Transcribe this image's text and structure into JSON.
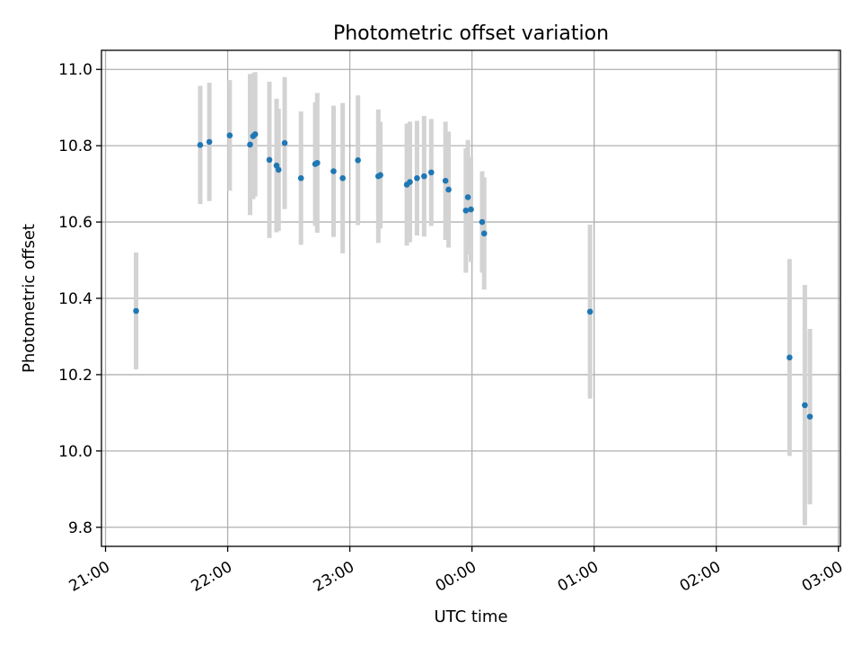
{
  "chart_data": {
    "type": "scatter",
    "title": "Photometric offset variation",
    "xlabel": "UTC time",
    "ylabel": "Photometric offset",
    "grid": true,
    "x_unit": "minutes after 21:00 UTC",
    "xlim": [
      -2,
      361
    ],
    "ylim": [
      9.75,
      11.05
    ],
    "x_ticks": [
      {
        "value": 0,
        "label": "21:00"
      },
      {
        "value": 60,
        "label": "22:00"
      },
      {
        "value": 120,
        "label": "23:00"
      },
      {
        "value": 180,
        "label": "00:00"
      },
      {
        "value": 240,
        "label": "01:00"
      },
      {
        "value": 300,
        "label": "02:00"
      },
      {
        "value": 360,
        "label": "03:00"
      }
    ],
    "y_ticks": [
      {
        "value": 9.8,
        "label": "9.8"
      },
      {
        "value": 10.0,
        "label": "10.0"
      },
      {
        "value": 10.2,
        "label": "10.2"
      },
      {
        "value": 10.4,
        "label": "10.4"
      },
      {
        "value": 10.6,
        "label": "10.6"
      },
      {
        "value": 10.8,
        "label": "10.8"
      },
      {
        "value": 11.0,
        "label": "11.0"
      }
    ],
    "colors": {
      "point": "#1f77b4",
      "errorbar": "#d3d3d3"
    },
    "points": [
      {
        "x": 15,
        "y": 10.367,
        "err": 0.153
      },
      {
        "x": 46.5,
        "y": 10.802,
        "err": 0.155
      },
      {
        "x": 51,
        "y": 10.81,
        "err": 0.155
      },
      {
        "x": 61,
        "y": 10.827,
        "err": 0.145
      },
      {
        "x": 71,
        "y": 10.803,
        "err": 0.185
      },
      {
        "x": 72.5,
        "y": 10.825,
        "err": 0.165
      },
      {
        "x": 73.5,
        "y": 10.83,
        "err": 0.163
      },
      {
        "x": 80.5,
        "y": 10.763,
        "err": 0.205
      },
      {
        "x": 84,
        "y": 10.748,
        "err": 0.175
      },
      {
        "x": 85,
        "y": 10.737,
        "err": 0.16
      },
      {
        "x": 88,
        "y": 10.807,
        "err": 0.173
      },
      {
        "x": 96,
        "y": 10.715,
        "err": 0.175
      },
      {
        "x": 103,
        "y": 10.752,
        "err": 0.162
      },
      {
        "x": 104,
        "y": 10.755,
        "err": 0.183
      },
      {
        "x": 112,
        "y": 10.733,
        "err": 0.172
      },
      {
        "x": 116.5,
        "y": 10.715,
        "err": 0.197
      },
      {
        "x": 124,
        "y": 10.762,
        "err": 0.17
      },
      {
        "x": 134,
        "y": 10.72,
        "err": 0.175
      },
      {
        "x": 135,
        "y": 10.723,
        "err": 0.14
      },
      {
        "x": 148,
        "y": 10.698,
        "err": 0.16
      },
      {
        "x": 149.5,
        "y": 10.705,
        "err": 0.158
      },
      {
        "x": 153,
        "y": 10.715,
        "err": 0.15
      },
      {
        "x": 156.5,
        "y": 10.72,
        "err": 0.158
      },
      {
        "x": 160,
        "y": 10.73,
        "err": 0.14
      },
      {
        "x": 167,
        "y": 10.708,
        "err": 0.155
      },
      {
        "x": 168.5,
        "y": 10.685,
        "err": 0.152
      },
      {
        "x": 177,
        "y": 10.63,
        "err": 0.163
      },
      {
        "x": 178,
        "y": 10.665,
        "err": 0.15
      },
      {
        "x": 179.5,
        "y": 10.633,
        "err": 0.138
      },
      {
        "x": 185,
        "y": 10.6,
        "err": 0.133
      },
      {
        "x": 186,
        "y": 10.57,
        "err": 0.147
      },
      {
        "x": 238,
        "y": 10.365,
        "err": 0.228
      },
      {
        "x": 336,
        "y": 10.245,
        "err": 0.258
      },
      {
        "x": 343.5,
        "y": 10.12,
        "err": 0.315
      },
      {
        "x": 346,
        "y": 10.09,
        "err": 0.23
      }
    ]
  }
}
